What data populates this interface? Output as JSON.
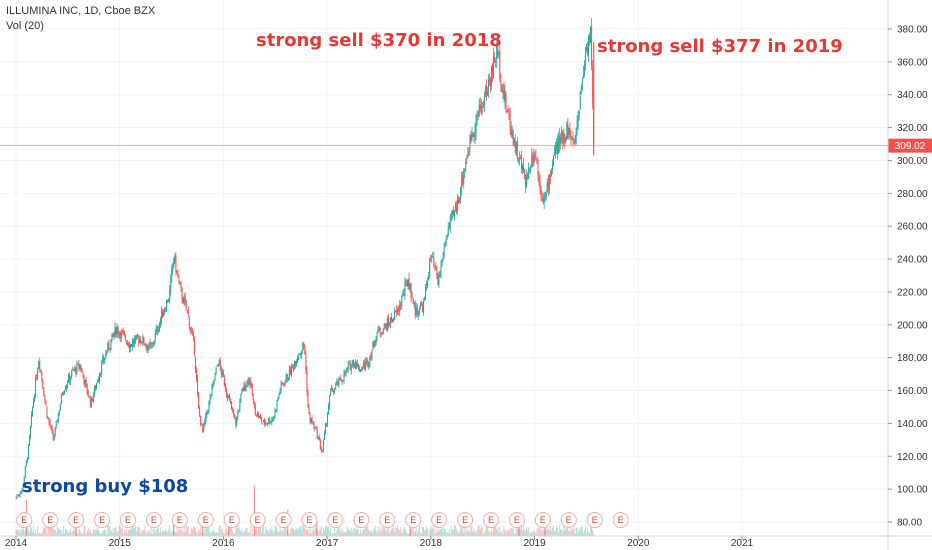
{
  "header": {
    "symbol_line": "ILLUMINA INC, 1D, Cboe BZX",
    "volume_line": "Vol (20)"
  },
  "annotations": {
    "sell_2018": "strong sell $370 in 2018",
    "sell_2019": "strong sell $377 in 2019",
    "buy": "strong buy $108"
  },
  "colors": {
    "up": "#26a69a",
    "down": "#ef5350",
    "annotation_red": "#e53935",
    "annotation_blue": "#0d47a1",
    "price_line": "#ef5350"
  },
  "chart_data": {
    "type": "candlestick",
    "title": "ILLUMINA INC, 1D, Cboe BZX",
    "ylabel": "",
    "xlabel": "",
    "y_ticks": [
      "80.00",
      "100.00",
      "120.00",
      "140.00",
      "160.00",
      "180.00",
      "200.00",
      "220.00",
      "240.00",
      "260.00",
      "280.00",
      "300.00",
      "320.00",
      "340.00",
      "360.00",
      "380.00"
    ],
    "x_ticks": [
      "2014",
      "2015",
      "2016",
      "2017",
      "2018",
      "2019",
      "2020",
      "2021"
    ],
    "ylim": [
      76,
      392
    ],
    "last_price": "309.02",
    "last_price_value": 309.02,
    "earnings_marker": "E",
    "earnings_count": 24,
    "price_path": [
      [
        2014.0,
        95
      ],
      [
        2014.06,
        100
      ],
      [
        2014.12,
        125
      ],
      [
        2014.16,
        150
      ],
      [
        2014.22,
        180
      ],
      [
        2014.3,
        145
      ],
      [
        2014.36,
        130
      ],
      [
        2014.45,
        160
      ],
      [
        2014.55,
        172
      ],
      [
        2014.62,
        175
      ],
      [
        2014.72,
        152
      ],
      [
        2014.8,
        170
      ],
      [
        2014.88,
        185
      ],
      [
        2014.97,
        198
      ],
      [
        2015.1,
        188
      ],
      [
        2015.2,
        192
      ],
      [
        2015.3,
        185
      ],
      [
        2015.4,
        205
      ],
      [
        2015.48,
        218
      ],
      [
        2015.52,
        242
      ],
      [
        2015.58,
        222
      ],
      [
        2015.65,
        208
      ],
      [
        2015.72,
        185
      ],
      [
        2015.76,
        148
      ],
      [
        2015.8,
        135
      ],
      [
        2015.88,
        158
      ],
      [
        2015.95,
        178
      ],
      [
        2016.05,
        155
      ],
      [
        2016.12,
        140
      ],
      [
        2016.18,
        160
      ],
      [
        2016.25,
        168
      ],
      [
        2016.3,
        148
      ],
      [
        2016.38,
        140
      ],
      [
        2016.48,
        143
      ],
      [
        2016.55,
        162
      ],
      [
        2016.65,
        172
      ],
      [
        2016.72,
        182
      ],
      [
        2016.78,
        188
      ],
      [
        2016.82,
        145
      ],
      [
        2016.9,
        134
      ],
      [
        2016.95,
        122
      ],
      [
        2017.03,
        158
      ],
      [
        2017.15,
        168
      ],
      [
        2017.25,
        178
      ],
      [
        2017.32,
        173
      ],
      [
        2017.4,
        178
      ],
      [
        2017.48,
        195
      ],
      [
        2017.58,
        200
      ],
      [
        2017.68,
        208
      ],
      [
        2017.78,
        228
      ],
      [
        2017.85,
        208
      ],
      [
        2017.93,
        212
      ],
      [
        2018.0,
        242
      ],
      [
        2018.07,
        225
      ],
      [
        2018.15,
        255
      ],
      [
        2018.25,
        272
      ],
      [
        2018.32,
        295
      ],
      [
        2018.4,
        318
      ],
      [
        2018.5,
        335
      ],
      [
        2018.58,
        352
      ],
      [
        2018.64,
        368
      ],
      [
        2018.7,
        340
      ],
      [
        2018.78,
        318
      ],
      [
        2018.85,
        300
      ],
      [
        2018.92,
        288
      ],
      [
        2019.0,
        308
      ],
      [
        2019.05,
        285
      ],
      [
        2019.1,
        275
      ],
      [
        2019.18,
        302
      ],
      [
        2019.25,
        312
      ],
      [
        2019.32,
        320
      ],
      [
        2019.38,
        308
      ],
      [
        2019.45,
        345
      ],
      [
        2019.5,
        370
      ],
      [
        2019.54,
        378
      ],
      [
        2019.57,
        309
      ]
    ],
    "volume_spikes": [
      [
        2014.1,
        3
      ],
      [
        2014.58,
        1.5
      ],
      [
        2015.52,
        1.4
      ],
      [
        2015.8,
        1.8
      ],
      [
        2016.05,
        1.6
      ],
      [
        2016.3,
        4.2
      ],
      [
        2016.62,
        2.2
      ],
      [
        2016.9,
        1.3
      ],
      [
        2017.8,
        1.5
      ],
      [
        2018.85,
        1.7
      ],
      [
        2019.1,
        1.5
      ]
    ]
  }
}
